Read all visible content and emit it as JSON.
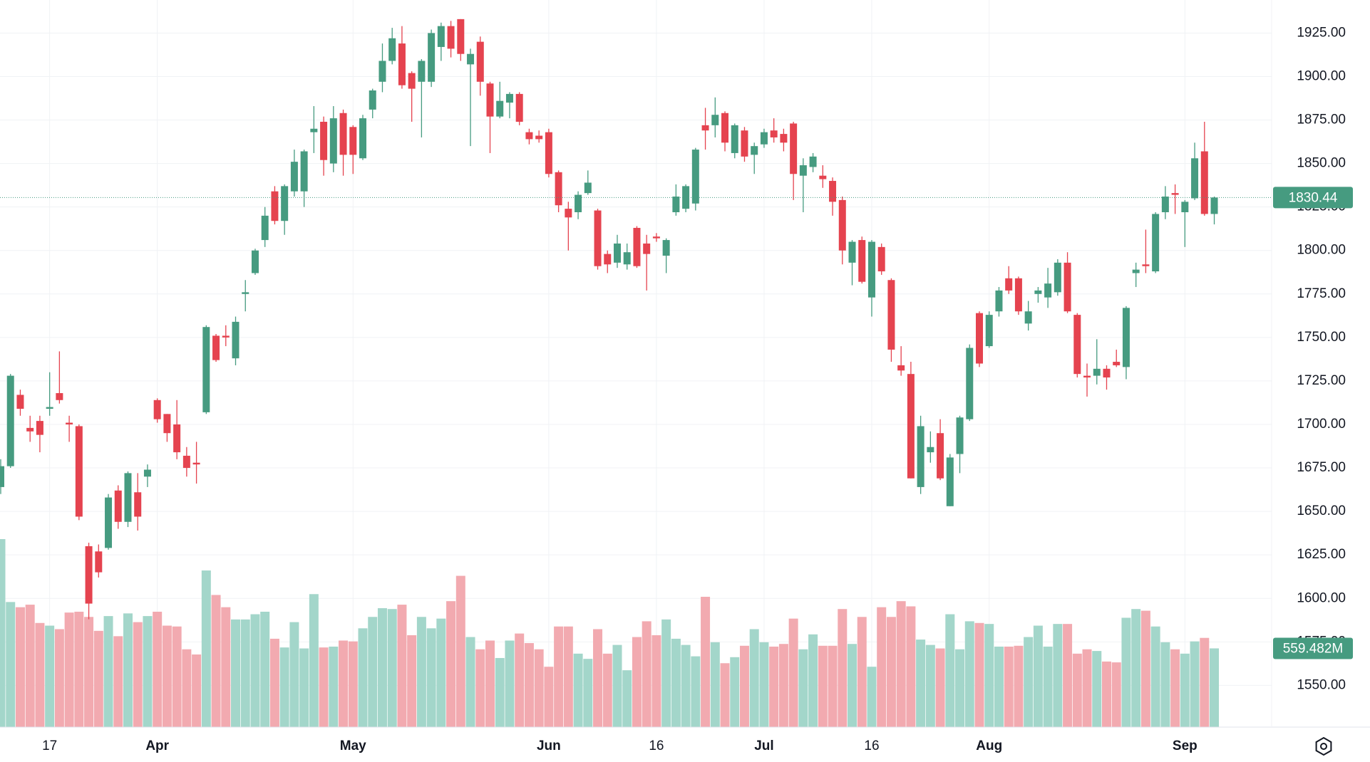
{
  "chart_data": {
    "type": "candlestick",
    "categories": [
      null,
      null,
      null,
      null,
      null,
      "17",
      null,
      null,
      null,
      null,
      null,
      null,
      null,
      null,
      null,
      null,
      "Apr",
      null,
      null,
      null,
      null,
      null,
      null,
      null,
      null,
      null,
      null,
      null,
      null,
      null,
      null,
      null,
      null,
      null,
      null,
      null,
      "May",
      null,
      null,
      null,
      null,
      null,
      null,
      null,
      null,
      null,
      null,
      null,
      null,
      null,
      null,
      null,
      null,
      null,
      null,
      null,
      "Jun",
      null,
      null,
      null,
      null,
      null,
      null,
      null,
      null,
      null,
      null,
      "16",
      null,
      null,
      null,
      null,
      null,
      null,
      null,
      null,
      null,
      null,
      "Jul",
      null,
      null,
      null,
      null,
      null,
      null,
      null,
      null,
      null,
      null,
      "16",
      null,
      null,
      null,
      null,
      null,
      null,
      null,
      null,
      null,
      null,
      null,
      "Aug",
      null,
      null,
      null,
      null,
      null,
      null,
      null,
      null,
      null,
      null,
      null,
      null,
      null,
      null,
      null,
      null,
      null,
      null,
      null,
      "Sep",
      null,
      null,
      null
    ],
    "open": [
      1664,
      1676,
      1717,
      1698,
      1702,
      1709,
      1718,
      1701,
      1699,
      1630,
      1627,
      1629,
      1662,
      1644,
      1661,
      1670,
      1714,
      1706,
      1700,
      1682,
      1678,
      1707,
      1751,
      1751,
      1738,
      1775,
      1787,
      1806,
      1834,
      1817,
      1834,
      1834,
      1868,
      1874,
      1850,
      1879,
      1871,
      1853,
      1881,
      1897,
      1909,
      1919,
      1902,
      1897,
      1897,
      1917,
      1929,
      1933,
      1907,
      1920,
      1896,
      1877,
      1885,
      1890,
      1868,
      1866,
      1868,
      1845,
      1824,
      1822,
      1833,
      1823,
      1798,
      1793,
      1792,
      1813,
      1804,
      1808,
      1797,
      1822,
      1824,
      1827,
      1872,
      1872,
      1879,
      1856,
      1869,
      1855,
      1861,
      1869,
      1867,
      1873,
      1843,
      1848,
      1843,
      1840,
      1829,
      1793,
      1806,
      1773,
      1802,
      1783,
      1734,
      1729,
      1664,
      1684,
      1695,
      1653,
      1683,
      1703,
      1764,
      1745,
      1765,
      1784,
      1784,
      1758,
      1775,
      1773,
      1776,
      1793,
      1763,
      1728,
      1728,
      1732,
      1736,
      1733,
      1787,
      1792,
      1788,
      1822,
      1833,
      1822,
      1830,
      1857,
      1821
    ],
    "high": [
      1680,
      1729,
      1720,
      1705,
      1705,
      1730,
      1742,
      1705,
      1700,
      1632,
      1631,
      1660,
      1665,
      1673,
      1672,
      1677,
      1715,
      1706,
      1714,
      1687,
      1690,
      1757,
      1752,
      1757,
      1762,
      1783,
      1801,
      1825,
      1837,
      1838,
      1858,
      1858,
      1883,
      1877,
      1883,
      1881,
      1872,
      1878,
      1893,
      1919,
      1928,
      1929,
      1903,
      1910,
      1927,
      1931,
      1932,
      1933,
      1916,
      1923,
      1897,
      1897,
      1891,
      1891,
      1870,
      1869,
      1870,
      1846,
      1828,
      1834,
      1846,
      1824,
      1800,
      1809,
      1804,
      1814,
      1809,
      1810,
      1807,
      1838,
      1838,
      1859,
      1882,
      1888,
      1880,
      1873,
      1871,
      1862,
      1870,
      1876,
      1870,
      1874,
      1853,
      1856,
      1849,
      1842,
      1831,
      1806,
      1808,
      1806,
      1804,
      1784,
      1745,
      1736,
      1705,
      1696,
      1703,
      1683,
      1705,
      1746,
      1765,
      1765,
      1779,
      1791,
      1785,
      1771,
      1779,
      1790,
      1795,
      1799,
      1764,
      1735,
      1749,
      1734,
      1743,
      1768,
      1793,
      1812,
      1822,
      1837,
      1838,
      1829,
      1862,
      1874,
      1831
    ],
    "low": [
      1660,
      1675,
      1705,
      1690,
      1684,
      1705,
      1712,
      1690,
      1645,
      1588,
      1612,
      1628,
      1640,
      1641,
      1639,
      1664,
      1701,
      1690,
      1680,
      1670,
      1666,
      1706,
      1736,
      1745,
      1734,
      1765,
      1786,
      1802,
      1815,
      1809,
      1831,
      1825,
      1856,
      1843,
      1845,
      1843,
      1844,
      1852,
      1876,
      1891,
      1907,
      1893,
      1874,
      1865,
      1894,
      1909,
      1911,
      1909,
      1860,
      1889,
      1856,
      1876,
      1876,
      1872,
      1861,
      1862,
      1842,
      1822,
      1800,
      1818,
      1832,
      1789,
      1787,
      1790,
      1789,
      1790,
      1777,
      1805,
      1787,
      1820,
      1822,
      1823,
      1858,
      1865,
      1857,
      1853,
      1851,
      1844,
      1859,
      1862,
      1857,
      1829,
      1822,
      1845,
      1836,
      1820,
      1792,
      1780,
      1781,
      1762,
      1786,
      1736,
      1728,
      1669,
      1660,
      1678,
      1668,
      1653,
      1672,
      1702,
      1733,
      1744,
      1762,
      1775,
      1763,
      1754,
      1770,
      1767,
      1774,
      1764,
      1727,
      1716,
      1723,
      1720,
      1733,
      1726,
      1779,
      1787,
      1787,
      1818,
      1821,
      1802,
      1829,
      1820,
      1815
    ],
    "close": [
      1676,
      1728,
      1709,
      1696,
      1694,
      1710,
      1714,
      1700,
      1647,
      1597,
      1615,
      1658,
      1644,
      1672,
      1647,
      1674,
      1703,
      1695,
      1684,
      1675,
      1677,
      1756,
      1737,
      1750,
      1759,
      1776,
      1800,
      1820,
      1817,
      1837,
      1851,
      1857,
      1870,
      1852,
      1876,
      1855,
      1855,
      1876,
      1892,
      1909,
      1922,
      1895,
      1893,
      1909,
      1925,
      1929,
      1916,
      1913,
      1913,
      1897,
      1877,
      1886,
      1890,
      1874,
      1864,
      1864,
      1844,
      1826,
      1819,
      1832,
      1839,
      1791,
      1792,
      1804,
      1799,
      1791,
      1798,
      1807,
      1806,
      1831,
      1837,
      1858,
      1869,
      1878,
      1862,
      1872,
      1854,
      1860,
      1868,
      1865,
      1862,
      1844,
      1849,
      1854,
      1841,
      1828,
      1800,
      1805,
      1782,
      1805,
      1788,
      1743,
      1731,
      1669,
      1699,
      1687,
      1669,
      1681,
      1704,
      1744,
      1735,
      1763,
      1777,
      1777,
      1765,
      1765,
      1777,
      1781,
      1793,
      1765,
      1729,
      1727,
      1732,
      1727,
      1734,
      1767,
      1789,
      1791,
      1821,
      1831,
      1832,
      1828,
      1853,
      1821,
      1830.44
    ],
    "volume": [
      1336,
      889,
      852,
      870,
      740,
      721,
      696,
      814,
      820,
      783,
      684,
      789,
      646,
      808,
      746,
      789,
      820,
      721,
      715,
      553,
      516,
      1113,
      939,
      852,
      765,
      765,
      802,
      820,
      628,
      566,
      746,
      559,
      945,
      566,
      572,
      615,
      609,
      702,
      783,
      845,
      839,
      870,
      653,
      783,
      702,
      771,
      895,
      1075,
      640,
      553,
      615,
      491,
      615,
      665,
      597,
      553,
      429,
      715,
      715,
      522,
      485,
      696,
      522,
      584,
      404,
      640,
      752,
      653,
      765,
      628,
      584,
      503,
      926,
      603,
      454,
      497,
      578,
      696,
      603,
      572,
      591,
      771,
      553,
      659,
      578,
      578,
      839,
      591,
      783,
      429,
      852,
      783,
      895,
      858,
      622,
      584,
      559,
      802,
      553,
      752,
      740,
      733,
      572,
      572,
      578,
      640,
      721,
      572,
      733,
      733,
      522,
      553,
      541,
      466,
      460,
      777,
      839,
      827,
      715,
      603,
      553,
      522,
      609,
      634,
      559.482
    ],
    "volume_last_label": "559.482M",
    "ylim": [
      1526,
      1944
    ],
    "yticks": [
      {
        "value": 1550,
        "label": "1550.00"
      },
      {
        "value": 1575,
        "label": "1575.00"
      },
      {
        "value": 1600,
        "label": "1600.00"
      },
      {
        "value": 1625,
        "label": "1625.00"
      },
      {
        "value": 1650,
        "label": "1650.00"
      },
      {
        "value": 1675,
        "label": "1675.00"
      },
      {
        "value": 1700,
        "label": "1700.00"
      },
      {
        "value": 1725,
        "label": "1725.00"
      },
      {
        "value": 1750,
        "label": "1750.00"
      },
      {
        "value": 1775,
        "label": "1775.00"
      },
      {
        "value": 1800,
        "label": "1800.00"
      },
      {
        "value": 1825,
        "label": "1825.00"
      },
      {
        "value": 1850,
        "label": "1850.00"
      },
      {
        "value": 1875,
        "label": "1875.00"
      },
      {
        "value": 1900,
        "label": "1900.00"
      },
      {
        "value": 1925,
        "label": "1925.00"
      }
    ],
    "grid": true,
    "up_color": "#469b80",
    "down_color": "#e5434f",
    "volume_up_color": "#a3d6ca",
    "volume_down_color": "#f2aab0"
  }
}
